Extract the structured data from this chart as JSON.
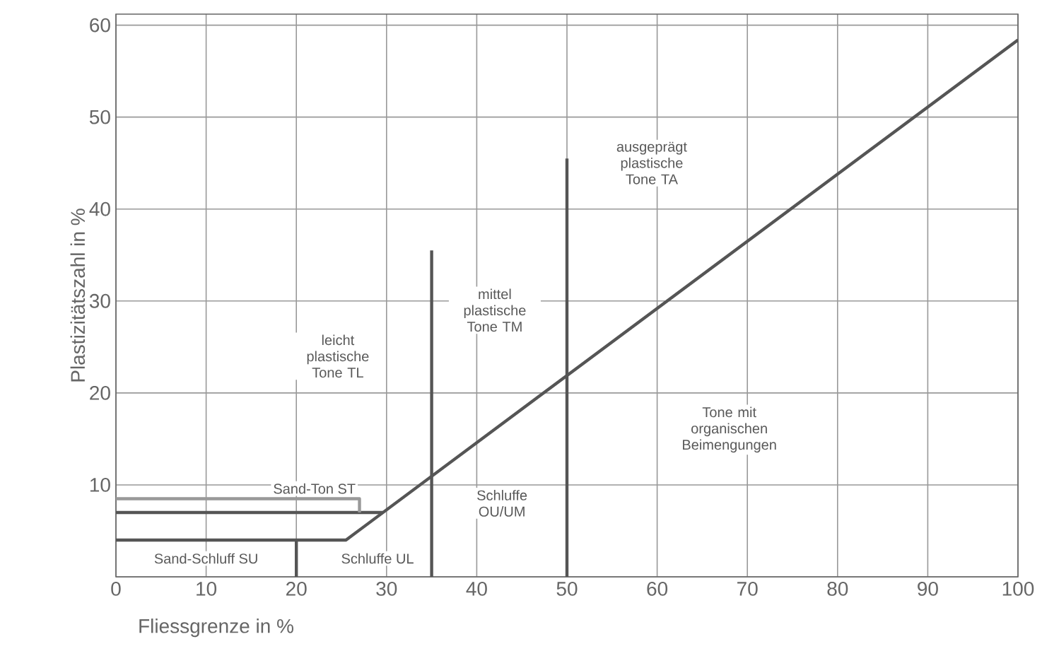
{
  "chart_data": {
    "type": "line",
    "xlabel": "Fliessgrenze in %",
    "ylabel": "Plastizitätszahl in %",
    "xlim": [
      0,
      100
    ],
    "ylim": [
      0,
      61.2
    ],
    "xticks": [
      0,
      10,
      20,
      30,
      40,
      50,
      60,
      70,
      80,
      90,
      100
    ],
    "yticks": [
      {
        "value": 0,
        "label": null
      },
      10,
      20,
      30,
      40,
      50,
      60
    ],
    "grid": true,
    "marker": "none",
    "line_style": "solid",
    "series": [
      {
        "color": "#555555",
        "x": [
          0,
          25.5,
          100
        ],
        "values": [
          4,
          4,
          58.4
        ]
      },
      {
        "color": "#555555",
        "x": [
          0,
          29.6
        ],
        "values": [
          7,
          7
        ]
      },
      {
        "color": "#555555",
        "x": [
          35,
          35
        ],
        "values": [
          0,
          35.5
        ]
      },
      {
        "color": "#555555",
        "x": [
          50,
          50
        ],
        "values": [
          0,
          45.5
        ]
      },
      {
        "color": "#555555",
        "x": [
          20,
          20
        ],
        "values": [
          0,
          4
        ]
      },
      {
        "color": "#999999",
        "x": [
          0,
          27,
          27
        ],
        "values": [
          8.5,
          8.5,
          7
        ]
      }
    ],
    "annotations": [
      "ausgeprägt plastische Tone TA",
      "mittel plastische Tone TM",
      "leicht plastische Tone TL",
      "Tone mit organischen Beimengungen",
      "Schluffe OU/UM",
      "Sand-Ton ST",
      "Sand-Schluff SU",
      "Schluffe UL"
    ]
  }
}
